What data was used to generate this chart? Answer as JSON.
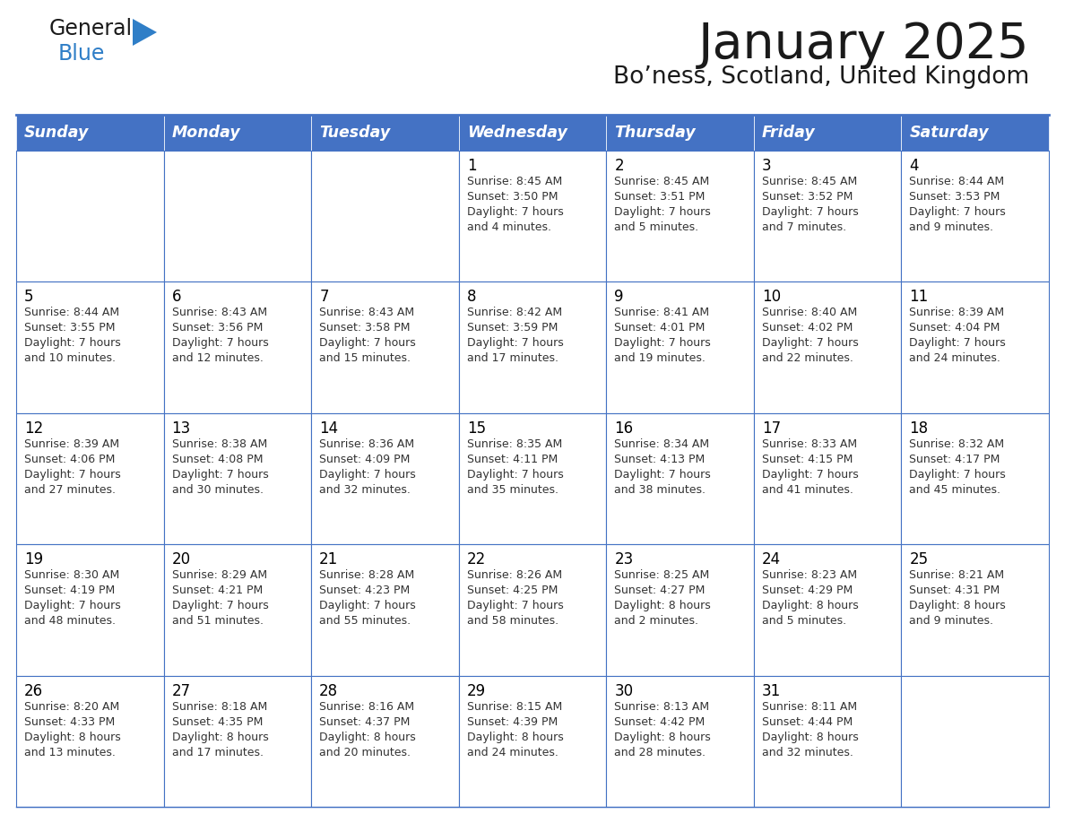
{
  "title": "January 2025",
  "subtitle": "Bo’ness, Scotland, United Kingdom",
  "header_bg": "#4472C4",
  "header_text_color": "#FFFFFF",
  "border_color": "#4472C4",
  "text_color": "#000000",
  "cell_text_color": "#333333",
  "days_of_week": [
    "Sunday",
    "Monday",
    "Tuesday",
    "Wednesday",
    "Thursday",
    "Friday",
    "Saturday"
  ],
  "weeks": [
    [
      {
        "day": "",
        "sunrise": "",
        "sunset": "",
        "daylight_h": "",
        "daylight_m": ""
      },
      {
        "day": "",
        "sunrise": "",
        "sunset": "",
        "daylight_h": "",
        "daylight_m": ""
      },
      {
        "day": "",
        "sunrise": "",
        "sunset": "",
        "daylight_h": "",
        "daylight_m": ""
      },
      {
        "day": "1",
        "sunrise": "8:45 AM",
        "sunset": "3:50 PM",
        "daylight_h": "7 hours",
        "daylight_m": "and 4 minutes."
      },
      {
        "day": "2",
        "sunrise": "8:45 AM",
        "sunset": "3:51 PM",
        "daylight_h": "7 hours",
        "daylight_m": "and 5 minutes."
      },
      {
        "day": "3",
        "sunrise": "8:45 AM",
        "sunset": "3:52 PM",
        "daylight_h": "7 hours",
        "daylight_m": "and 7 minutes."
      },
      {
        "day": "4",
        "sunrise": "8:44 AM",
        "sunset": "3:53 PM",
        "daylight_h": "7 hours",
        "daylight_m": "and 9 minutes."
      }
    ],
    [
      {
        "day": "5",
        "sunrise": "8:44 AM",
        "sunset": "3:55 PM",
        "daylight_h": "7 hours",
        "daylight_m": "and 10 minutes."
      },
      {
        "day": "6",
        "sunrise": "8:43 AM",
        "sunset": "3:56 PM",
        "daylight_h": "7 hours",
        "daylight_m": "and 12 minutes."
      },
      {
        "day": "7",
        "sunrise": "8:43 AM",
        "sunset": "3:58 PM",
        "daylight_h": "7 hours",
        "daylight_m": "and 15 minutes."
      },
      {
        "day": "8",
        "sunrise": "8:42 AM",
        "sunset": "3:59 PM",
        "daylight_h": "7 hours",
        "daylight_m": "and 17 minutes."
      },
      {
        "day": "9",
        "sunrise": "8:41 AM",
        "sunset": "4:01 PM",
        "daylight_h": "7 hours",
        "daylight_m": "and 19 minutes."
      },
      {
        "day": "10",
        "sunrise": "8:40 AM",
        "sunset": "4:02 PM",
        "daylight_h": "7 hours",
        "daylight_m": "and 22 minutes."
      },
      {
        "day": "11",
        "sunrise": "8:39 AM",
        "sunset": "4:04 PM",
        "daylight_h": "7 hours",
        "daylight_m": "and 24 minutes."
      }
    ],
    [
      {
        "day": "12",
        "sunrise": "8:39 AM",
        "sunset": "4:06 PM",
        "daylight_h": "7 hours",
        "daylight_m": "and 27 minutes."
      },
      {
        "day": "13",
        "sunrise": "8:38 AM",
        "sunset": "4:08 PM",
        "daylight_h": "7 hours",
        "daylight_m": "and 30 minutes."
      },
      {
        "day": "14",
        "sunrise": "8:36 AM",
        "sunset": "4:09 PM",
        "daylight_h": "7 hours",
        "daylight_m": "and 32 minutes."
      },
      {
        "day": "15",
        "sunrise": "8:35 AM",
        "sunset": "4:11 PM",
        "daylight_h": "7 hours",
        "daylight_m": "and 35 minutes."
      },
      {
        "day": "16",
        "sunrise": "8:34 AM",
        "sunset": "4:13 PM",
        "daylight_h": "7 hours",
        "daylight_m": "and 38 minutes."
      },
      {
        "day": "17",
        "sunrise": "8:33 AM",
        "sunset": "4:15 PM",
        "daylight_h": "7 hours",
        "daylight_m": "and 41 minutes."
      },
      {
        "day": "18",
        "sunrise": "8:32 AM",
        "sunset": "4:17 PM",
        "daylight_h": "7 hours",
        "daylight_m": "and 45 minutes."
      }
    ],
    [
      {
        "day": "19",
        "sunrise": "8:30 AM",
        "sunset": "4:19 PM",
        "daylight_h": "7 hours",
        "daylight_m": "and 48 minutes."
      },
      {
        "day": "20",
        "sunrise": "8:29 AM",
        "sunset": "4:21 PM",
        "daylight_h": "7 hours",
        "daylight_m": "and 51 minutes."
      },
      {
        "day": "21",
        "sunrise": "8:28 AM",
        "sunset": "4:23 PM",
        "daylight_h": "7 hours",
        "daylight_m": "and 55 minutes."
      },
      {
        "day": "22",
        "sunrise": "8:26 AM",
        "sunset": "4:25 PM",
        "daylight_h": "7 hours",
        "daylight_m": "and 58 minutes."
      },
      {
        "day": "23",
        "sunrise": "8:25 AM",
        "sunset": "4:27 PM",
        "daylight_h": "8 hours",
        "daylight_m": "and 2 minutes."
      },
      {
        "day": "24",
        "sunrise": "8:23 AM",
        "sunset": "4:29 PM",
        "daylight_h": "8 hours",
        "daylight_m": "and 5 minutes."
      },
      {
        "day": "25",
        "sunrise": "8:21 AM",
        "sunset": "4:31 PM",
        "daylight_h": "8 hours",
        "daylight_m": "and 9 minutes."
      }
    ],
    [
      {
        "day": "26",
        "sunrise": "8:20 AM",
        "sunset": "4:33 PM",
        "daylight_h": "8 hours",
        "daylight_m": "and 13 minutes."
      },
      {
        "day": "27",
        "sunrise": "8:18 AM",
        "sunset": "4:35 PM",
        "daylight_h": "8 hours",
        "daylight_m": "and 17 minutes."
      },
      {
        "day": "28",
        "sunrise": "8:16 AM",
        "sunset": "4:37 PM",
        "daylight_h": "8 hours",
        "daylight_m": "and 20 minutes."
      },
      {
        "day": "29",
        "sunrise": "8:15 AM",
        "sunset": "4:39 PM",
        "daylight_h": "8 hours",
        "daylight_m": "and 24 minutes."
      },
      {
        "day": "30",
        "sunrise": "8:13 AM",
        "sunset": "4:42 PM",
        "daylight_h": "8 hours",
        "daylight_m": "and 28 minutes."
      },
      {
        "day": "31",
        "sunrise": "8:11 AM",
        "sunset": "4:44 PM",
        "daylight_h": "8 hours",
        "daylight_m": "and 32 minutes."
      },
      {
        "day": "",
        "sunrise": "",
        "sunset": "",
        "daylight_h": "",
        "daylight_m": ""
      }
    ]
  ]
}
